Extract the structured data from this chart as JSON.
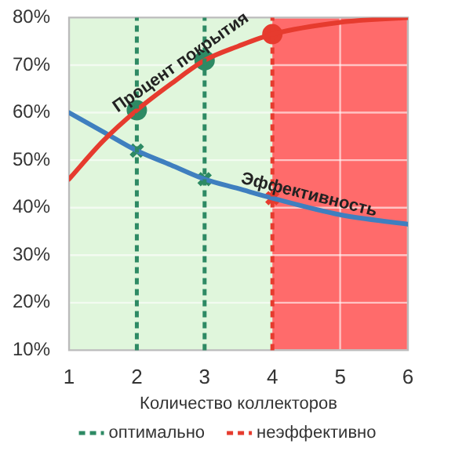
{
  "chart_data": {
    "type": "line",
    "xlabel": "Количество коллекторов",
    "x": [
      1,
      1.5,
      2,
      2.5,
      3,
      3.5,
      4,
      5,
      6
    ],
    "series": [
      {
        "name": "Процент покрытия",
        "color": "#e63b2e",
        "values": [
          46,
          54,
          60.5,
          66,
          71,
          74,
          76.5,
          79,
          80
        ]
      },
      {
        "name": "Эффективность",
        "color": "#3f7fbf",
        "values": [
          60,
          56,
          52,
          49,
          46,
          44,
          42,
          38.5,
          36.5
        ]
      },
      {
        "type": "scatter",
        "marker": "circle",
        "x": [
          2,
          3,
          4
        ],
        "colors": [
          "#2e8a64",
          "#2e8a64",
          "#e63b2e"
        ],
        "values": [
          60.5,
          71,
          76.5
        ]
      },
      {
        "type": "scatter",
        "marker": "cross",
        "x": [
          2,
          3,
          4
        ],
        "colors": [
          "#2e8a64",
          "#2e8a64",
          "#e63b2e"
        ],
        "values": [
          52,
          46,
          42
        ]
      }
    ],
    "xlim": [
      1,
      6
    ],
    "xticks": [
      1,
      2,
      3,
      4,
      5,
      6
    ],
    "ylim": [
      10,
      80
    ],
    "yticks": [
      {
        "value": 10,
        "label": "10%"
      },
      {
        "value": 20,
        "label": "20%"
      },
      {
        "value": 30,
        "label": "30%"
      },
      {
        "value": 40,
        "label": "40%"
      },
      {
        "value": 50,
        "label": "50%"
      },
      {
        "value": 60,
        "label": "60%"
      },
      {
        "value": 70,
        "label": "70%"
      },
      {
        "value": 80,
        "label": "80%"
      }
    ],
    "bands": [
      {
        "axis": "x",
        "from": 1,
        "to": 4,
        "color": "#e0f6dc"
      },
      {
        "axis": "x",
        "from": 4,
        "to": 6,
        "color": "#ff6b6b"
      }
    ],
    "ref_lines": [
      {
        "axis": "x",
        "value": 2,
        "label": "оптимально",
        "color": "#2e8a64",
        "line_style": "dashed"
      },
      {
        "axis": "x",
        "value": 3,
        "color": "#2e8a64",
        "line_style": "dashed"
      },
      {
        "axis": "x",
        "value": 4,
        "label": "неэффективно",
        "color": "#e63b2e",
        "line_style": "dashed"
      }
    ],
    "grid": true,
    "legend": "bottom",
    "line_style": "solid"
  }
}
